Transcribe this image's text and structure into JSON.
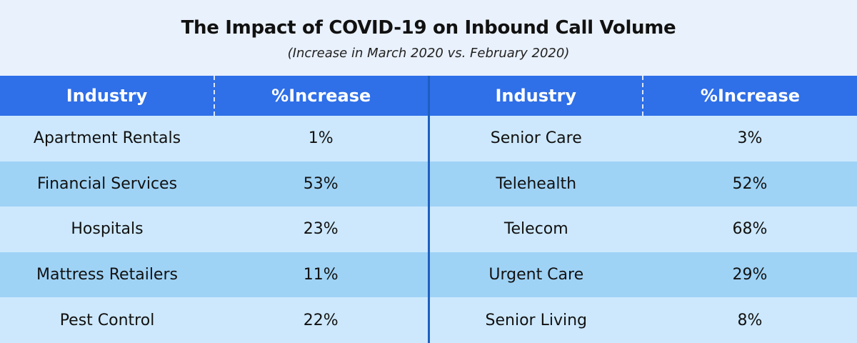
{
  "chart_data": {
    "type": "table",
    "title": "The Impact of COVID-19 on Inbound Call Volume",
    "subtitle": "(Increase in March 2020 vs. February 2020)",
    "columns": [
      "Industry",
      "%Increase",
      "Industry",
      "%Increase"
    ],
    "rows": [
      [
        "Apartment Rentals",
        "1%",
        "Senior Care",
        "3%"
      ],
      [
        "Financial Services",
        "53%",
        "Telehealth",
        "52%"
      ],
      [
        "Hospitals",
        "23%",
        "Telecom",
        "68%"
      ],
      [
        "Mattress Retailers",
        "11%",
        "Urgent Care",
        "29%"
      ],
      [
        "Pest Control",
        "22%",
        "Senior Living",
        "8%"
      ]
    ]
  },
  "colors": {
    "header_bg": "#2f6fe8",
    "row_light": "#cde8fd",
    "row_dark": "#9fd3f6",
    "title_bg": "#e9f1fc",
    "divider": "#1f5fc0"
  }
}
